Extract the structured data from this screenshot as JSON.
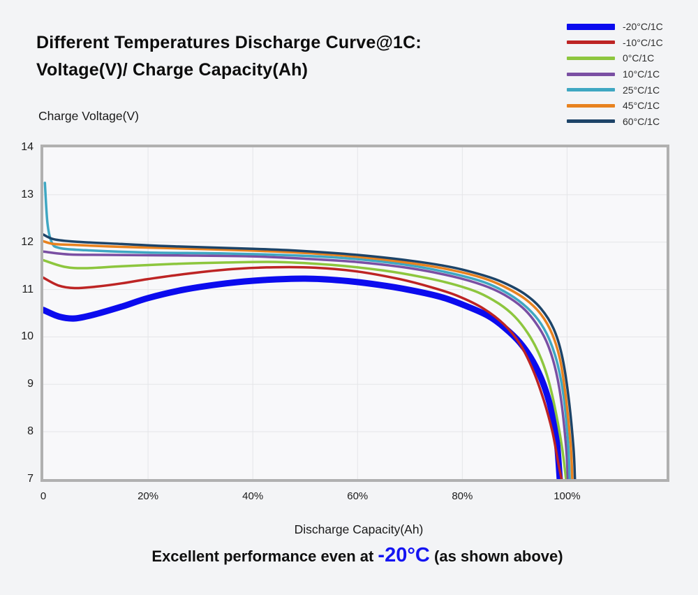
{
  "page": {
    "background": "#f3f4f6"
  },
  "header": {
    "title_line1": "Different Temperatures Discharge Curve@1C:",
    "title_line2": "Voltage(V)/ Charge Capacity(Ah)"
  },
  "caption": {
    "prefix": "Excellent performance even at ",
    "highlight": "-20°C",
    "suffix": " (as shown above)",
    "highlight_color": "#1414f2"
  },
  "chart_data": {
    "type": "line",
    "title": "Different Temperatures Discharge Curve@1C: Voltage(V)/ Charge Capacity(Ah)",
    "ylabel": "Charge Voltage(V)",
    "xlabel": "Discharge Capacity(Ah)",
    "xlim": [
      0,
      119
    ],
    "ylim": [
      7,
      14
    ],
    "grid": true,
    "legend_position": "top-right",
    "frame_color": "#b0b0b0",
    "grid_color": "#e4e5e8",
    "plot_background": "#f8f8fa",
    "y_ticks": [
      7,
      8,
      9,
      10,
      11,
      12,
      13,
      14
    ],
    "x_ticks": [
      {
        "value": 0,
        "label": "0"
      },
      {
        "value": 20,
        "label": "20%"
      },
      {
        "value": 40,
        "label": "40%"
      },
      {
        "value": 60,
        "label": "60%"
      },
      {
        "value": 80,
        "label": "80%"
      },
      {
        "value": 100,
        "label": "100%"
      }
    ],
    "series": [
      {
        "name": "-20°C/1C",
        "color": "#0b0bee",
        "line_width": 9,
        "points": [
          [
            0,
            10.57
          ],
          [
            3,
            10.43
          ],
          [
            6,
            10.39
          ],
          [
            10,
            10.48
          ],
          [
            15,
            10.64
          ],
          [
            20,
            10.82
          ],
          [
            27,
            11.0
          ],
          [
            35,
            11.13
          ],
          [
            42,
            11.2
          ],
          [
            50,
            11.23
          ],
          [
            57,
            11.19
          ],
          [
            64,
            11.1
          ],
          [
            70,
            10.99
          ],
          [
            76,
            10.84
          ],
          [
            81,
            10.64
          ],
          [
            85,
            10.44
          ],
          [
            88,
            10.2
          ],
          [
            91,
            9.88
          ],
          [
            93.5,
            9.48
          ],
          [
            95.5,
            9.0
          ],
          [
            97,
            8.45
          ],
          [
            98,
            7.85
          ],
          [
            98.6,
            7.0
          ]
        ]
      },
      {
        "name": "-10°C/1C",
        "color": "#bd2424",
        "line_width": 3.5,
        "points": [
          [
            0,
            11.25
          ],
          [
            3,
            11.08
          ],
          [
            6,
            11.03
          ],
          [
            10,
            11.06
          ],
          [
            15,
            11.13
          ],
          [
            20,
            11.22
          ],
          [
            28,
            11.34
          ],
          [
            36,
            11.43
          ],
          [
            44,
            11.47
          ],
          [
            52,
            11.46
          ],
          [
            60,
            11.38
          ],
          [
            68,
            11.22
          ],
          [
            74,
            11.05
          ],
          [
            79,
            10.87
          ],
          [
            84,
            10.6
          ],
          [
            88,
            10.26
          ],
          [
            91,
            9.85
          ],
          [
            93.5,
            9.3
          ],
          [
            95.5,
            8.68
          ],
          [
            97.2,
            8.0
          ],
          [
            98.3,
            7.35
          ],
          [
            98.95,
            7.0
          ]
        ]
      },
      {
        "name": "0°C/1C",
        "color": "#8dc63e",
        "line_width": 3.5,
        "points": [
          [
            0,
            11.62
          ],
          [
            4,
            11.48
          ],
          [
            8,
            11.45
          ],
          [
            15,
            11.49
          ],
          [
            25,
            11.54
          ],
          [
            35,
            11.57
          ],
          [
            45,
            11.58
          ],
          [
            55,
            11.52
          ],
          [
            65,
            11.4
          ],
          [
            72,
            11.27
          ],
          [
            78,
            11.12
          ],
          [
            83,
            10.94
          ],
          [
            87,
            10.7
          ],
          [
            90,
            10.43
          ],
          [
            92.5,
            10.08
          ],
          [
            94.5,
            9.68
          ],
          [
            96.2,
            9.18
          ],
          [
            97.6,
            8.55
          ],
          [
            99,
            7.7
          ],
          [
            99.8,
            7.0
          ]
        ]
      },
      {
        "name": "10°C/1C",
        "color": "#7a4fa3",
        "line_width": 3.5,
        "points": [
          [
            0,
            11.8
          ],
          [
            5,
            11.74
          ],
          [
            12,
            11.73
          ],
          [
            25,
            11.72
          ],
          [
            40,
            11.7
          ],
          [
            50,
            11.65
          ],
          [
            60,
            11.58
          ],
          [
            70,
            11.45
          ],
          [
            78,
            11.28
          ],
          [
            84,
            11.09
          ],
          [
            88,
            10.89
          ],
          [
            91.5,
            10.62
          ],
          [
            94,
            10.3
          ],
          [
            96,
            9.92
          ],
          [
            97.6,
            9.4
          ],
          [
            98.8,
            8.72
          ],
          [
            99.8,
            7.7
          ],
          [
            100.15,
            7.0
          ]
        ]
      },
      {
        "name": "25°C/1C",
        "color": "#3fa7c2",
        "line_width": 3.5,
        "points": [
          [
            0.3,
            13.25
          ],
          [
            0.8,
            12.4
          ],
          [
            1.6,
            12.0
          ],
          [
            3,
            11.88
          ],
          [
            8,
            11.83
          ],
          [
            20,
            11.78
          ],
          [
            35,
            11.76
          ],
          [
            50,
            11.71
          ],
          [
            60,
            11.64
          ],
          [
            70,
            11.51
          ],
          [
            78,
            11.34
          ],
          [
            84,
            11.16
          ],
          [
            88,
            10.96
          ],
          [
            91.5,
            10.7
          ],
          [
            94.5,
            10.36
          ],
          [
            96.6,
            9.95
          ],
          [
            98.2,
            9.42
          ],
          [
            99.4,
            8.7
          ],
          [
            100.2,
            7.75
          ],
          [
            100.5,
            7.0
          ]
        ]
      },
      {
        "name": "45°C/1C",
        "color": "#e8821f",
        "line_width": 3.5,
        "points": [
          [
            0,
            12.02
          ],
          [
            2,
            11.96
          ],
          [
            6,
            11.94
          ],
          [
            15,
            11.9
          ],
          [
            25,
            11.87
          ],
          [
            40,
            11.82
          ],
          [
            50,
            11.77
          ],
          [
            60,
            11.69
          ],
          [
            70,
            11.56
          ],
          [
            78,
            11.41
          ],
          [
            84,
            11.24
          ],
          [
            88,
            11.06
          ],
          [
            92,
            10.8
          ],
          [
            95,
            10.48
          ],
          [
            97.2,
            10.05
          ],
          [
            98.7,
            9.5
          ],
          [
            99.8,
            8.7
          ],
          [
            100.7,
            7.7
          ],
          [
            101,
            7.0
          ]
        ]
      },
      {
        "name": "60°C/1C",
        "color": "#1d4468",
        "line_width": 3.5,
        "points": [
          [
            0,
            12.16
          ],
          [
            2,
            12.06
          ],
          [
            6,
            12.01
          ],
          [
            15,
            11.96
          ],
          [
            25,
            11.91
          ],
          [
            40,
            11.86
          ],
          [
            50,
            11.81
          ],
          [
            60,
            11.73
          ],
          [
            70,
            11.61
          ],
          [
            78,
            11.47
          ],
          [
            84,
            11.3
          ],
          [
            88,
            11.14
          ],
          [
            92,
            10.9
          ],
          [
            95,
            10.6
          ],
          [
            97.4,
            10.18
          ],
          [
            99,
            9.62
          ],
          [
            100.2,
            8.8
          ],
          [
            101.2,
            7.7
          ],
          [
            101.5,
            7.0
          ]
        ]
      }
    ]
  }
}
